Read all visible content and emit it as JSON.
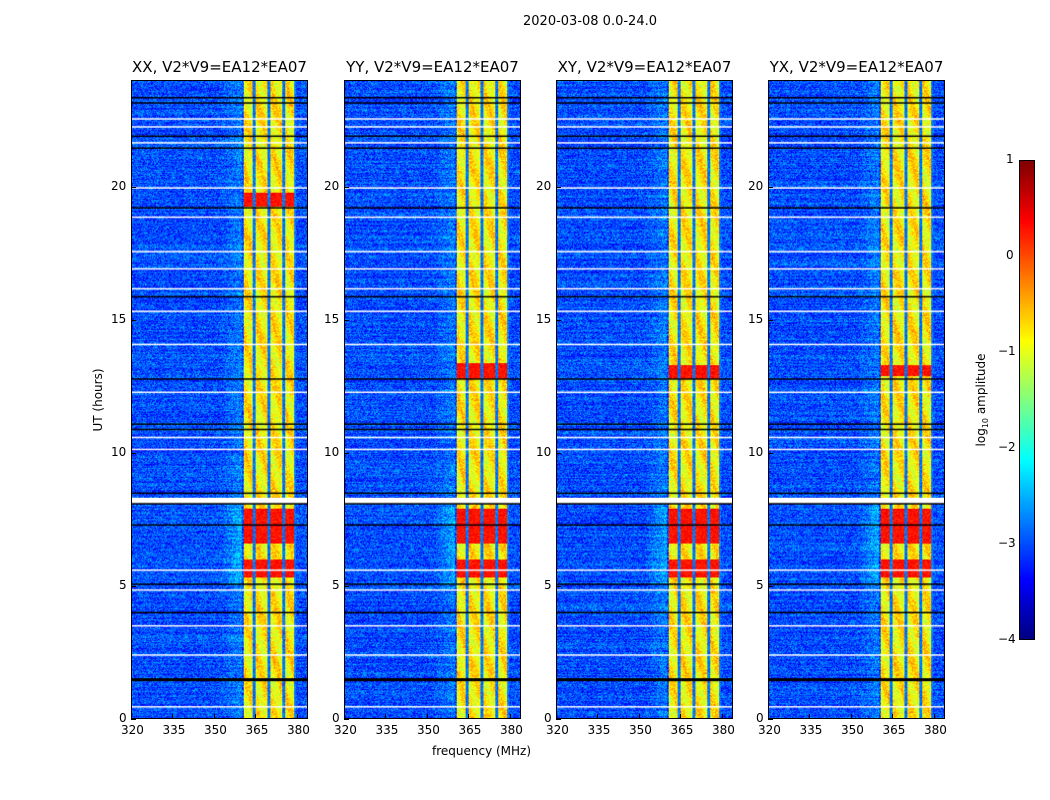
{
  "chart_data": {
    "type": "heatmap",
    "title": "2020-03-08 0.0-24.0",
    "xlabel": "frequency (MHz)",
    "ylabel": "UT (hours)",
    "xlim": [
      320,
      384
    ],
    "ylim": [
      0,
      24
    ],
    "xticks": [
      320,
      335,
      350,
      365,
      380
    ],
    "yticks": [
      0,
      5,
      10,
      15,
      20
    ],
    "panels": [
      {
        "title": "XX, V2*V9=EA12*EA07",
        "strong_hours": [
          [
            5.3,
            6.0
          ],
          [
            6.6,
            7.9
          ],
          [
            19.3,
            19.8
          ]
        ]
      },
      {
        "title": "YY, V2*V9=EA12*EA07",
        "strong_hours": [
          [
            5.3,
            6.0
          ],
          [
            6.6,
            7.9
          ],
          [
            12.8,
            13.4
          ]
        ]
      },
      {
        "title": "XY, V2*V9=EA12*EA07",
        "strong_hours": [
          [
            5.3,
            6.0
          ],
          [
            6.6,
            7.9
          ],
          [
            12.8,
            13.3
          ]
        ]
      },
      {
        "title": "YX, V2*V9=EA12*EA07",
        "strong_hours": [
          [
            5.3,
            6.0
          ],
          [
            6.6,
            7.9
          ],
          [
            12.9,
            13.3
          ]
        ]
      }
    ],
    "background_log_amplitude": -3.0,
    "rfi_band_mhz": [
      360.5,
      380.0
    ],
    "rfi_band_log_amplitude": -0.8,
    "subband_gaps_mhz": [
      364.6,
      370.0,
      375.3,
      379.6
    ],
    "flagged_hours_white": [
      22.6,
      22.3,
      21.7,
      20.0,
      18.9,
      17.6,
      16.95,
      16.2,
      15.35,
      14.1,
      12.3,
      10.6,
      10.15,
      8.3,
      5.6,
      4.85,
      3.5,
      2.4,
      0.45
    ],
    "flagged_hours_black": [
      23.4,
      23.2,
      21.95,
      21.5,
      19.25,
      15.9,
      12.8,
      11.1,
      10.9,
      8.5,
      8.1,
      7.3,
      5.07,
      4.0,
      1.5
    ],
    "colorbar": {
      "label": "log10 amplitude",
      "label_base": "log",
      "label_sub": "10",
      "label_rest": " amplitude",
      "range": [
        -4,
        1
      ],
      "ticks": [
        1,
        0,
        -1,
        -2,
        -3,
        -4
      ],
      "colormap": "jet"
    }
  }
}
